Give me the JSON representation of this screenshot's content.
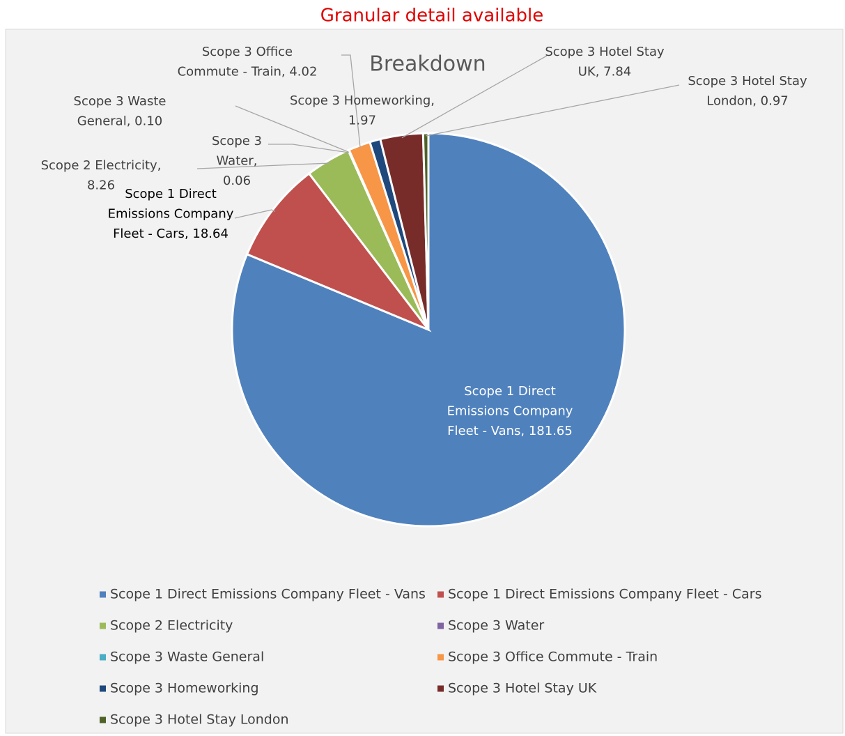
{
  "header": {
    "title": "Granular detail available"
  },
  "chart_data": {
    "type": "pie",
    "title": "Breakdown",
    "categories": [
      "Scope 1 Direct Emissions Company Fleet - Vans",
      "Scope 1 Direct Emissions Company Fleet - Cars",
      "Scope 2 Electricity",
      "Scope 3 Water",
      "Scope 3 Waste General",
      "Scope 3 Office Commute - Train",
      "Scope 3 Homeworking",
      "Scope 3 Hotel Stay UK",
      "Scope 3 Hotel Stay London"
    ],
    "values": [
      181.65,
      18.64,
      8.26,
      0.06,
      0.1,
      4.02,
      1.97,
      7.84,
      0.97
    ],
    "value_labels": [
      "Scope 1 Direct Emissions Company Fleet - Vans, 181.65",
      "Scope 1 Direct Emissions Company Fleet - Cars, 18.64",
      "Scope 2 Electricity, 8.26",
      "Scope 3 Water, 0.06",
      "Scope 3 Waste General, 0.10",
      "Scope 3 Office Commute - Train, 4.02",
      "Scope 3 Homeworking, 1.97",
      "Scope 3 Hotel Stay UK, 7.84",
      "Scope 3 Hotel Stay London, 0.97"
    ],
    "colors": [
      "#4f81bd",
      "#c0504d",
      "#9bbb59",
      "#8064a2",
      "#4bacc6",
      "#f79646",
      "#1f497d",
      "#772c2a",
      "#4f6228"
    ],
    "legend": "bottom"
  }
}
